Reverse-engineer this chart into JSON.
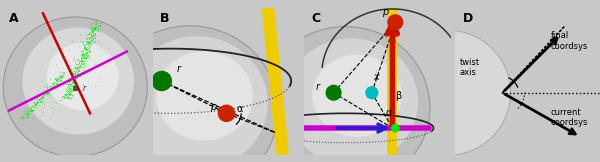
{
  "panel_labels": [
    "A",
    "B",
    "C",
    "D"
  ],
  "bg_color": "#c8c8c8",
  "sphere_light": "#e8e8e8",
  "sphere_lighter": "#f0f0f0",
  "green_bright": "#00ee00",
  "green_dark": "#007700",
  "red_ball": "#cc2200",
  "cyan_ball": "#00bbbb",
  "yellow_axis": "#eecc00",
  "magenta_line": "#cc00cc",
  "blue_arrow": "#2222cc",
  "red_arrow": "#cc1100",
  "black": "#111111",
  "dark_gray": "#444444"
}
